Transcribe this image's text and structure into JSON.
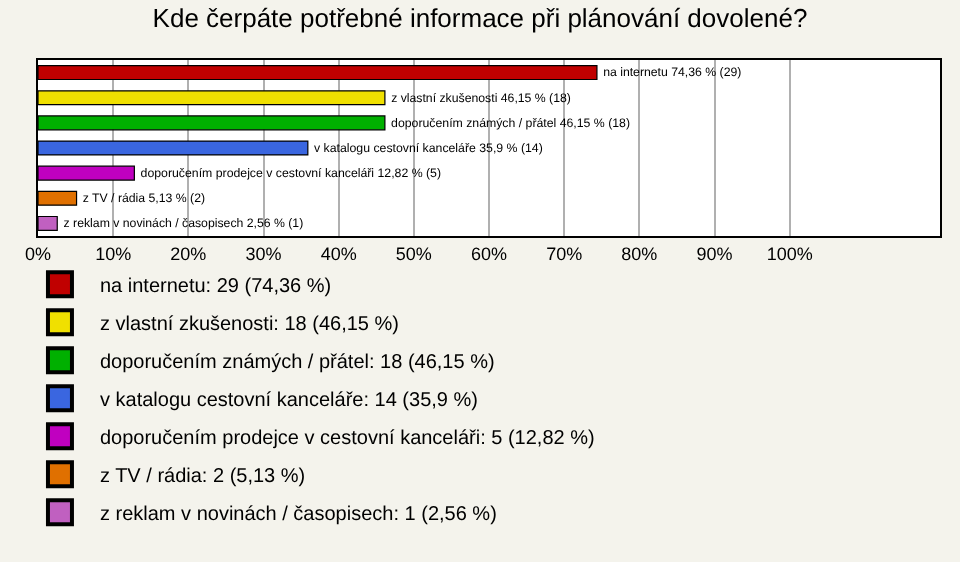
{
  "chart_data": {
    "type": "bar",
    "orientation": "horizontal",
    "title": "Kde čerpáte potřebné informace při plánování dovolené?",
    "categories": [
      null,
      null,
      null,
      null,
      null,
      null,
      null
    ],
    "series": [
      {
        "name": "na internetu: 29 (74,36 %)",
        "color": "#c00000",
        "values": [
          74.36,
          null,
          null,
          null,
          null,
          null,
          null
        ],
        "value_labels": [
          "na internetu 74,36 % (29)",
          null,
          null,
          null,
          null,
          null,
          null
        ]
      },
      {
        "name": "z vlastní zkušenosti: 18 (46,15 %)",
        "color": "#f0e000",
        "values": [
          null,
          46.15,
          null,
          null,
          null,
          null,
          null
        ],
        "value_labels": [
          null,
          "z vlastní zkušenosti 46,15 % (18)",
          null,
          null,
          null,
          null,
          null
        ]
      },
      {
        "name": "doporučením známých / přátel: 18 (46,15 %)",
        "color": "#00b000",
        "values": [
          null,
          null,
          46.15,
          null,
          null,
          null,
          null
        ],
        "value_labels": [
          null,
          null,
          "doporučením známých / přátel 46,15 % (18)",
          null,
          null,
          null,
          null
        ]
      },
      {
        "name": "v katalogu cestovní kanceláře: 14 (35,9 %)",
        "color": "#3a66e0",
        "values": [
          null,
          null,
          null,
          35.9,
          null,
          null,
          null
        ],
        "value_labels": [
          null,
          null,
          null,
          "v katalogu cestovní kanceláře 35,9 % (14)",
          null,
          null,
          null
        ]
      },
      {
        "name": "doporučením prodejce v cestovní kanceláři: 5 (12,82 %)",
        "color": "#c000c0",
        "values": [
          null,
          null,
          null,
          null,
          12.82,
          null,
          null
        ],
        "value_labels": [
          null,
          null,
          null,
          null,
          "doporučením prodejce v cestovní kanceláři 12,82 % (5)",
          null,
          null
        ]
      },
      {
        "name": "z TV / rádia: 2 (5,13 %)",
        "color": "#e07000",
        "values": [
          null,
          null,
          null,
          null,
          null,
          5.13,
          null
        ],
        "value_labels": [
          null,
          null,
          null,
          null,
          null,
          "z TV / rádia 5,13 % (2)",
          null
        ]
      },
      {
        "name": "z reklam v novinách / časopisech: 1 (2,56 %)",
        "color": "#c060c0",
        "values": [
          null,
          null,
          null,
          null,
          null,
          null,
          2.56
        ],
        "value_labels": [
          null,
          null,
          null,
          null,
          null,
          null,
          "z reklam v novinách / časopisech 2,56 % (1)"
        ]
      }
    ],
    "xlim": [
      0,
      120
    ],
    "xticks": [
      {
        "value": 0,
        "label": "0%"
      },
      {
        "value": 10,
        "label": "10%"
      },
      {
        "value": 20,
        "label": "20%"
      },
      {
        "value": 30,
        "label": "30%"
      },
      {
        "value": 40,
        "label": "40%"
      },
      {
        "value": 50,
        "label": "50%"
      },
      {
        "value": 60,
        "label": "60%"
      },
      {
        "value": 70,
        "label": "70%"
      },
      {
        "value": 80,
        "label": "80%"
      },
      {
        "value": 90,
        "label": "90%"
      },
      {
        "value": 100,
        "label": "100%"
      }
    ],
    "grid": "x",
    "legend": "bottom",
    "tick_labels": "x"
  }
}
